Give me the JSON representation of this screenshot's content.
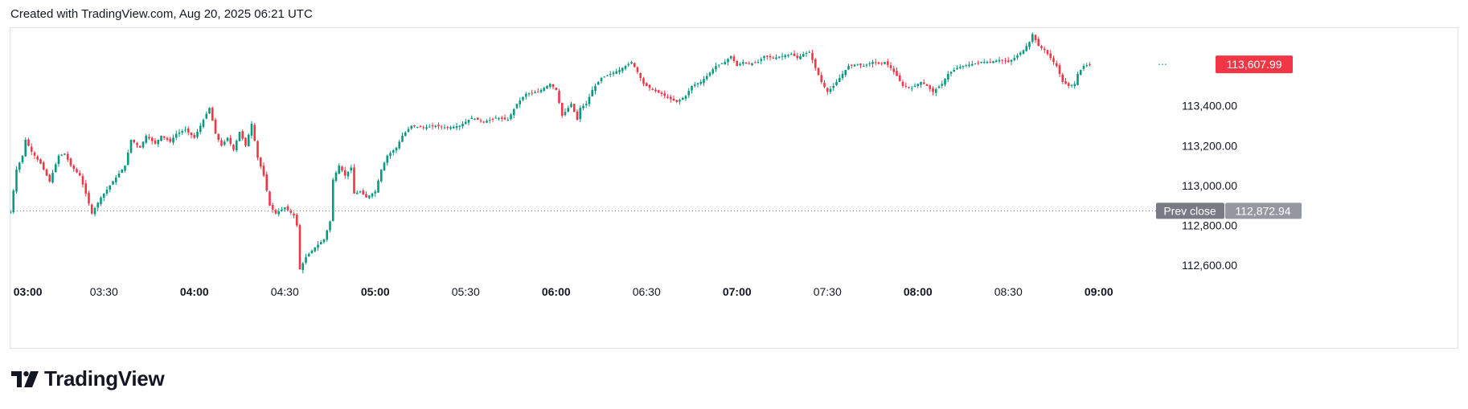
{
  "header": {
    "text": "Created with TradingView.com, Aug 20, 2025 06:21 UTC"
  },
  "footer": {
    "logo_text": "TradingView",
    "logo_icon": "tradingview-logo-icon"
  },
  "colors": {
    "up": "#089981",
    "down": "#f23645",
    "prev_close_badge": "#787b86",
    "prev_close_value_badge": "#9598a1",
    "text": "#131722",
    "border": "#e0e3eb"
  },
  "chart_data": {
    "type": "candlestick",
    "title": "",
    "interval_minutes": 1,
    "x_range": [
      "02:59",
      "09:23"
    ],
    "ylim": [
      112540,
      113790
    ],
    "x_ticks": [
      {
        "label": "03:00",
        "major": true
      },
      {
        "label": "03:30",
        "major": false
      },
      {
        "label": "04:00",
        "major": true
      },
      {
        "label": "04:30",
        "major": false
      },
      {
        "label": "05:00",
        "major": true
      },
      {
        "label": "05:30",
        "major": false
      },
      {
        "label": "06:00",
        "major": true
      },
      {
        "label": "06:30",
        "major": false
      },
      {
        "label": "07:00",
        "major": true
      },
      {
        "label": "07:30",
        "major": false
      },
      {
        "label": "08:00",
        "major": true
      },
      {
        "label": "08:30",
        "major": false
      },
      {
        "label": "09:00",
        "major": true
      }
    ],
    "y_ticks": [
      "112,600.00",
      "112,800.00",
      "113,000.00",
      "113,200.00",
      "113,400.00"
    ],
    "y_tick_values": [
      112600,
      112800,
      113000,
      113200,
      113400
    ],
    "last_price": {
      "label": "113,607.99",
      "value": 113607.99
    },
    "prev_close": {
      "label": "Prev close",
      "value_label": "112,872.94",
      "value": 112872.94
    },
    "close_path": [
      [
        "02:59",
        112870
      ],
      [
        "03:01",
        113080
      ],
      [
        "03:03",
        113150
      ],
      [
        "03:04",
        113230
      ],
      [
        "03:06",
        113170
      ],
      [
        "03:09",
        113110
      ],
      [
        "03:12",
        113020
      ],
      [
        "03:15",
        113150
      ],
      [
        "03:17",
        113160
      ],
      [
        "03:19",
        113100
      ],
      [
        "03:22",
        113050
      ],
      [
        "03:24",
        112960
      ],
      [
        "03:26",
        112860
      ],
      [
        "03:29",
        112940
      ],
      [
        "03:32",
        113000
      ],
      [
        "03:35",
        113060
      ],
      [
        "03:37",
        113100
      ],
      [
        "03:39",
        113230
      ],
      [
        "03:42",
        113190
      ],
      [
        "03:44",
        113250
      ],
      [
        "03:47",
        113210
      ],
      [
        "03:49",
        113250
      ],
      [
        "03:52",
        113220
      ],
      [
        "03:54",
        113260
      ],
      [
        "03:57",
        113280
      ],
      [
        "04:00",
        113240
      ],
      [
        "04:02",
        113300
      ],
      [
        "04:04",
        113360
      ],
      [
        "04:05",
        113390
      ],
      [
        "04:07",
        113260
      ],
      [
        "04:09",
        113200
      ],
      [
        "04:11",
        113240
      ],
      [
        "04:13",
        113180
      ],
      [
        "04:15",
        113270
      ],
      [
        "04:17",
        113200
      ],
      [
        "04:19",
        113310
      ],
      [
        "04:21",
        113140
      ],
      [
        "04:23",
        113050
      ],
      [
        "04:25",
        112900
      ],
      [
        "04:27",
        112860
      ],
      [
        "04:30",
        112890
      ],
      [
        "04:33",
        112850
      ],
      [
        "04:34",
        112800
      ],
      [
        "04:35",
        112580
      ],
      [
        "04:37",
        112640
      ],
      [
        "04:40",
        112690
      ],
      [
        "04:43",
        112730
      ],
      [
        "04:45",
        112820
      ],
      [
        "04:46",
        113030
      ],
      [
        "04:48",
        113100
      ],
      [
        "04:50",
        113050
      ],
      [
        "04:52",
        113090
      ],
      [
        "04:53",
        112960
      ],
      [
        "04:55",
        112970
      ],
      [
        "04:57",
        112940
      ],
      [
        "05:00",
        112970
      ],
      [
        "05:02",
        113080
      ],
      [
        "05:04",
        113150
      ],
      [
        "05:07",
        113190
      ],
      [
        "05:09",
        113250
      ],
      [
        "05:12",
        113300
      ],
      [
        "05:16",
        113290
      ],
      [
        "05:20",
        113300
      ],
      [
        "05:24",
        113290
      ],
      [
        "05:28",
        113300
      ],
      [
        "05:32",
        113340
      ],
      [
        "05:36",
        113320
      ],
      [
        "05:40",
        113340
      ],
      [
        "05:44",
        113330
      ],
      [
        "05:47",
        113410
      ],
      [
        "05:50",
        113460
      ],
      [
        "05:54",
        113470
      ],
      [
        "05:58",
        113510
      ],
      [
        "06:00",
        113480
      ],
      [
        "06:02",
        113350
      ],
      [
        "06:05",
        113410
      ],
      [
        "06:07",
        113330
      ],
      [
        "06:08",
        113390
      ],
      [
        "06:10",
        113410
      ],
      [
        "06:12",
        113480
      ],
      [
        "06:15",
        113540
      ],
      [
        "06:18",
        113560
      ],
      [
        "06:21",
        113580
      ],
      [
        "06:23",
        113600
      ],
      [
        "06:25",
        113620
      ],
      [
        "06:27",
        113570
      ],
      [
        "06:29",
        113510
      ],
      [
        "06:32",
        113480
      ],
      [
        "06:35",
        113460
      ],
      [
        "06:37",
        113440
      ],
      [
        "06:40",
        113420
      ],
      [
        "06:43",
        113450
      ],
      [
        "06:45",
        113500
      ],
      [
        "06:48",
        113520
      ],
      [
        "06:50",
        113550
      ],
      [
        "06:53",
        113600
      ],
      [
        "06:56",
        113620
      ],
      [
        "06:58",
        113650
      ],
      [
        "07:00",
        113600
      ],
      [
        "07:02",
        113620
      ],
      [
        "07:04",
        113610
      ],
      [
        "07:07",
        113620
      ],
      [
        "07:09",
        113650
      ],
      [
        "07:12",
        113640
      ],
      [
        "07:15",
        113650
      ],
      [
        "07:18",
        113660
      ],
      [
        "07:20",
        113640
      ],
      [
        "07:22",
        113660
      ],
      [
        "07:24",
        113670
      ],
      [
        "07:26",
        113590
      ],
      [
        "07:28",
        113520
      ],
      [
        "07:30",
        113470
      ],
      [
        "07:32",
        113500
      ],
      [
        "07:35",
        113560
      ],
      [
        "07:37",
        113600
      ],
      [
        "07:40",
        113610
      ],
      [
        "07:42",
        113600
      ],
      [
        "07:45",
        113620
      ],
      [
        "07:47",
        113610
      ],
      [
        "07:49",
        113620
      ],
      [
        "07:51",
        113590
      ],
      [
        "07:53",
        113550
      ],
      [
        "07:55",
        113500
      ],
      [
        "07:58",
        113490
      ],
      [
        "08:01",
        113520
      ],
      [
        "08:03",
        113500
      ],
      [
        "08:05",
        113470
      ],
      [
        "08:08",
        113510
      ],
      [
        "08:10",
        113560
      ],
      [
        "08:13",
        113590
      ],
      [
        "08:15",
        113600
      ],
      [
        "08:18",
        113610
      ],
      [
        "08:21",
        113620
      ],
      [
        "08:24",
        113620
      ],
      [
        "08:27",
        113630
      ],
      [
        "08:30",
        113620
      ],
      [
        "08:32",
        113640
      ],
      [
        "08:35",
        113680
      ],
      [
        "08:37",
        113720
      ],
      [
        "08:38",
        113760
      ],
      [
        "08:40",
        113700
      ],
      [
        "08:42",
        113680
      ],
      [
        "08:44",
        113640
      ],
      [
        "08:46",
        113600
      ],
      [
        "08:48",
        113520
      ],
      [
        "08:50",
        113500
      ],
      [
        "08:52",
        113510
      ],
      [
        "08:53",
        113560
      ],
      [
        "08:55",
        113600
      ],
      [
        "08:57",
        113608
      ]
    ]
  }
}
